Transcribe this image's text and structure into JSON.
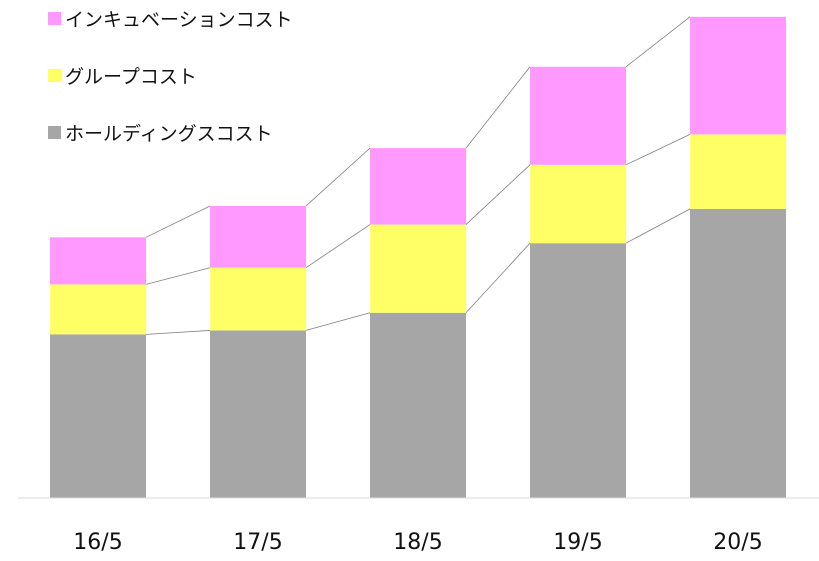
{
  "chart_data": {
    "type": "bar",
    "stacked": true,
    "categories": [
      "16/5",
      "17/5",
      "18/5",
      "19/5",
      "20/5"
    ],
    "series": [
      {
        "name": "ホールディングスコスト",
        "color": "#a6a6a6",
        "values": [
          167,
          171,
          189,
          260,
          295
        ]
      },
      {
        "name": "グループコスト",
        "color": "#ffff66",
        "values": [
          51,
          64,
          90,
          80,
          76
        ]
      },
      {
        "name": "インキュベーションコスト",
        "color": "#ff99ff",
        "values": [
          48,
          63,
          78,
          100,
          120
        ]
      }
    ],
    "legend_order": [
      "インキュベーションコスト",
      "グループコスト",
      "ホールディングスコスト"
    ],
    "legend_position": "top-left",
    "series_lines": true,
    "title": "",
    "xlabel": "",
    "ylabel": "",
    "ylim": [
      0,
      500
    ],
    "y_axis_visible": false,
    "grid": false
  }
}
